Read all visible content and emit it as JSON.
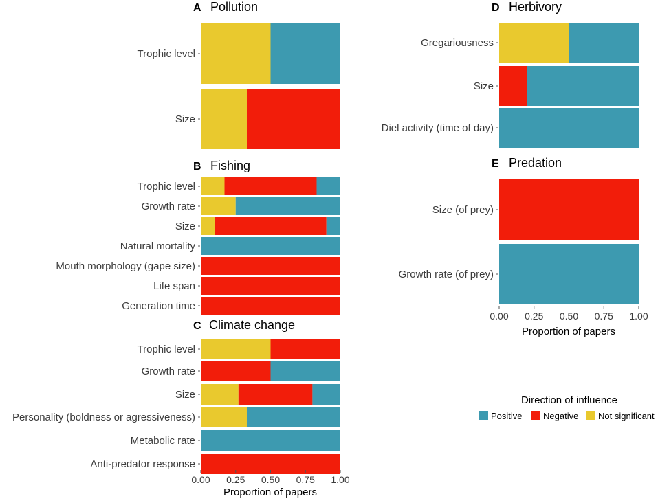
{
  "colors": {
    "positive": "#3d9ab0",
    "negative": "#f21d0a",
    "not_significant": "#e9c92e"
  },
  "legend": {
    "title": "Direction of influence",
    "items": [
      {
        "key": "positive",
        "label": "Positive"
      },
      {
        "key": "negative",
        "label": "Negative"
      },
      {
        "key": "not_significant",
        "label": "Not significant"
      }
    ]
  },
  "chart_data": [
    {
      "type": "bar",
      "orientation": "horizontal",
      "stacked": true,
      "letter": "A",
      "title": "Pollution",
      "categories": [
        "Trophic level",
        "Size"
      ],
      "series": [
        {
          "name": "Not significant",
          "values": [
            0.5,
            0.33
          ]
        },
        {
          "name": "Negative",
          "values": [
            0.0,
            0.67
          ]
        },
        {
          "name": "Positive",
          "values": [
            0.5,
            0.0
          ]
        }
      ],
      "xlim": [
        0,
        1
      ]
    },
    {
      "type": "bar",
      "orientation": "horizontal",
      "stacked": true,
      "letter": "B",
      "title": "Fishing",
      "categories": [
        "Trophic level",
        "Growth rate",
        "Size",
        "Natural mortality",
        "Mouth morphology (gape size)",
        "Life span",
        "Generation time"
      ],
      "series": [
        {
          "name": "Not significant",
          "values": [
            0.17,
            0.25,
            0.1,
            0,
            0,
            0,
            0
          ]
        },
        {
          "name": "Negative",
          "values": [
            0.66,
            0.0,
            0.8,
            0,
            1,
            1,
            1
          ]
        },
        {
          "name": "Positive",
          "values": [
            0.17,
            0.75,
            0.1,
            1,
            0,
            0,
            0
          ]
        }
      ],
      "xlim": [
        0,
        1
      ]
    },
    {
      "type": "bar",
      "orientation": "horizontal",
      "stacked": true,
      "letter": "C",
      "title": "Climate change",
      "categories": [
        "Trophic level",
        "Growth rate",
        "Size",
        "Personality (boldness or agressiveness)",
        "Metabolic rate",
        "Anti-predator response"
      ],
      "series": [
        {
          "name": "Not significant",
          "values": [
            0.5,
            0.0,
            0.27,
            0.33,
            0,
            0
          ]
        },
        {
          "name": "Negative",
          "values": [
            0.5,
            0.5,
            0.53,
            0.0,
            0,
            1
          ]
        },
        {
          "name": "Positive",
          "values": [
            0.0,
            0.5,
            0.2,
            0.67,
            1,
            0
          ]
        }
      ],
      "xlim": [
        0,
        1
      ],
      "xticks": [
        "0.00",
        "0.25",
        "0.50",
        "0.75",
        "1.00"
      ],
      "xlabel": "Proportion of papers"
    },
    {
      "type": "bar",
      "orientation": "horizontal",
      "stacked": true,
      "letter": "D",
      "title": "Herbivory",
      "categories": [
        "Gregariousness",
        "Size",
        "Diel activity (time of day)"
      ],
      "series": [
        {
          "name": "Not significant",
          "values": [
            0.5,
            0.0,
            0
          ]
        },
        {
          "name": "Negative",
          "values": [
            0.0,
            0.2,
            0
          ]
        },
        {
          "name": "Positive",
          "values": [
            0.5,
            0.8,
            1
          ]
        }
      ],
      "xlim": [
        0,
        1
      ]
    },
    {
      "type": "bar",
      "orientation": "horizontal",
      "stacked": true,
      "letter": "E",
      "title": "Predation",
      "categories": [
        "Size (of prey)",
        "Growth rate (of prey)"
      ],
      "series": [
        {
          "name": "Not significant",
          "values": [
            0,
            0
          ]
        },
        {
          "name": "Negative",
          "values": [
            1,
            0
          ]
        },
        {
          "name": "Positive",
          "values": [
            0,
            1
          ]
        }
      ],
      "xlim": [
        0,
        1
      ],
      "xticks": [
        "0.00",
        "0.25",
        "0.50",
        "0.75",
        "1.00"
      ],
      "xlabel": "Proportion of papers"
    }
  ]
}
